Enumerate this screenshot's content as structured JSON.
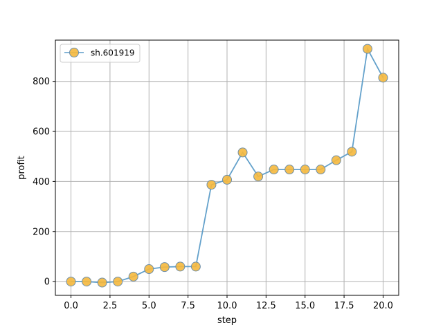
{
  "chart_data": {
    "type": "line",
    "title": "",
    "xlabel": "step",
    "ylabel": "profit",
    "xlim": [
      -1,
      21
    ],
    "ylim": [
      -55,
      965
    ],
    "xticks": [
      0.0,
      2.5,
      5.0,
      7.5,
      10.0,
      12.5,
      15.0,
      17.5,
      20.0
    ],
    "xtick_labels": [
      "0.0",
      "2.5",
      "5.0",
      "7.5",
      "10.0",
      "12.5",
      "15.0",
      "17.5",
      "20.0"
    ],
    "yticks": [
      0,
      200,
      400,
      600,
      800
    ],
    "ytick_labels": [
      "0",
      "200",
      "400",
      "600",
      "800"
    ],
    "grid": true,
    "legend_position": "top-left",
    "series": [
      {
        "name": "sh.601919",
        "line_color": "#5b9cc8",
        "marker_face": "#f5b83d",
        "marker_edge": "#6f8fa8",
        "x": [
          0,
          1,
          2,
          3,
          4,
          5,
          6,
          7,
          8,
          9,
          10,
          11,
          12,
          13,
          14,
          15,
          16,
          17,
          18,
          19,
          20
        ],
        "values": [
          0,
          0,
          -4,
          0,
          20,
          50,
          58,
          60,
          60,
          387,
          407,
          516,
          420,
          448,
          448,
          448,
          448,
          485,
          519,
          930,
          815
        ]
      }
    ]
  }
}
